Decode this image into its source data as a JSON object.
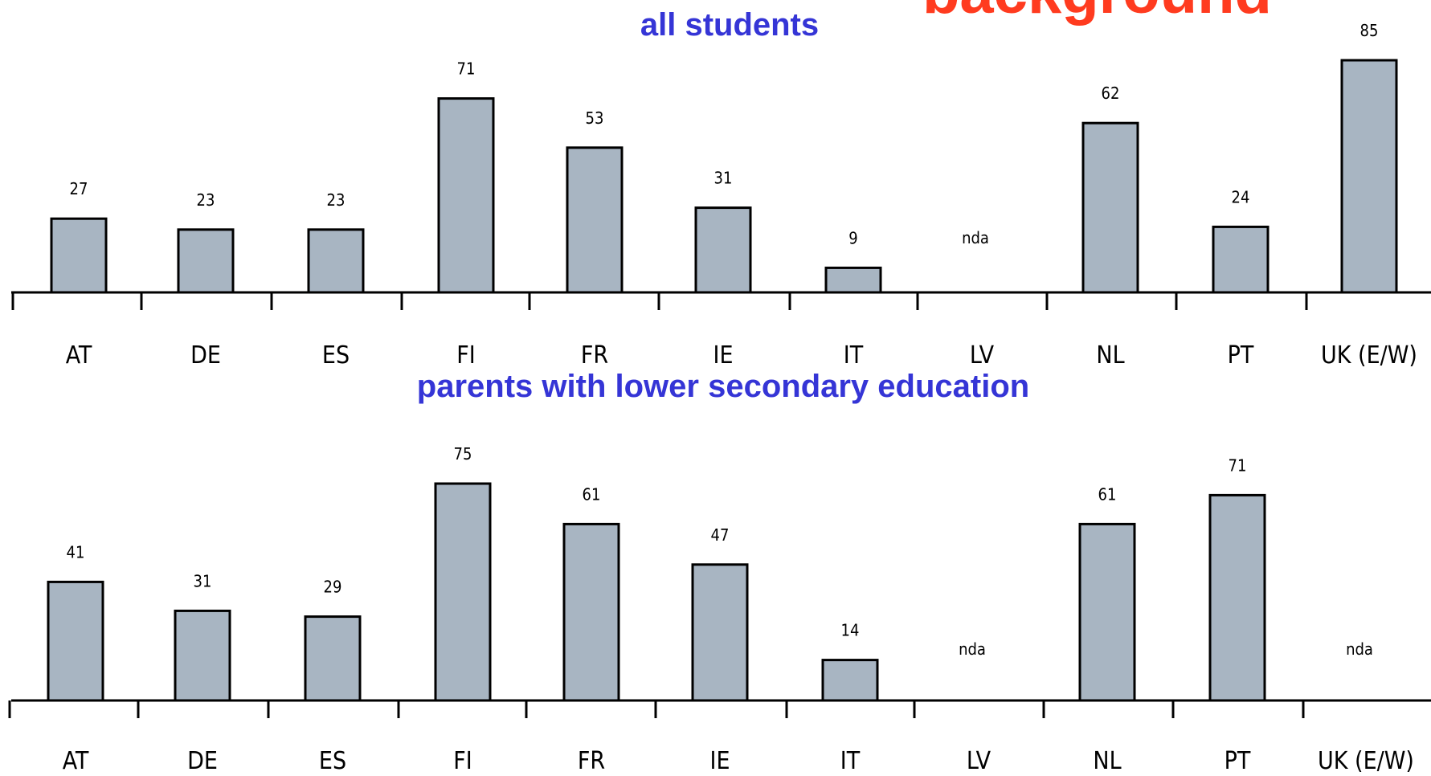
{
  "page": {
    "title_fragment": "background",
    "accent_title_color": "#ff3b1f",
    "subtitle_color": "#3535d6",
    "bar_color": "#a8b5c2"
  },
  "chart_data": [
    {
      "type": "bar",
      "title": "all students",
      "categories": [
        "AT",
        "DE",
        "ES",
        "FI",
        "FR",
        "IE",
        "IT",
        "LV",
        "NL",
        "PT",
        "UK (E/W)"
      ],
      "values": [
        27,
        23,
        23,
        71,
        53,
        31,
        9,
        null,
        62,
        24,
        85
      ],
      "value_labels": [
        "27",
        "23",
        "23",
        "71",
        "53",
        "31",
        "9",
        "nda",
        "62",
        "24",
        "85"
      ],
      "xlabel": "",
      "ylabel": "",
      "grid": false
    },
    {
      "type": "bar",
      "title": "parents with lower secondary education",
      "categories": [
        "AT",
        "DE",
        "ES",
        "FI",
        "FR",
        "IE",
        "IT",
        "LV",
        "NL",
        "PT",
        "UK (E/W)"
      ],
      "values": [
        41,
        31,
        29,
        75,
        61,
        47,
        14,
        null,
        61,
        71,
        null
      ],
      "value_labels": [
        "41",
        "31",
        "29",
        "75",
        "61",
        "47",
        "14",
        "nda",
        "61",
        "71",
        "nda"
      ],
      "xlabel": "",
      "ylabel": "",
      "grid": false
    }
  ]
}
